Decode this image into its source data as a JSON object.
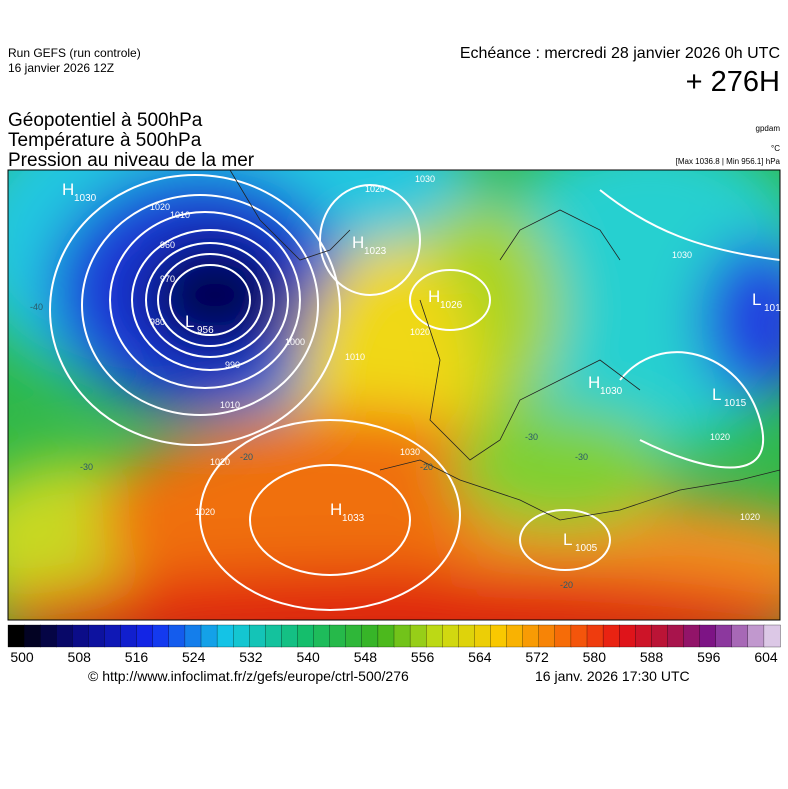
{
  "header": {
    "run": "Run GEFS (run controle)",
    "date": "16 janvier 2026 12Z",
    "echeance": "Echéance : mercredi 28 janvier 2026 0h UTC",
    "offset": "+ 276H"
  },
  "titles": [
    "Géopotentiel à 500hPa",
    "Température à 500hPa",
    "Pression au niveau de la mer"
  ],
  "units": {
    "geopotential": "gpdam",
    "temperature": "°C",
    "pressure": "[Max 1036.8 | Min 956.1] hPa"
  },
  "centers": [
    {
      "type": "H",
      "value": 1030
    },
    {
      "type": "L",
      "value": 956
    },
    {
      "type": "H",
      "value": 1023
    },
    {
      "type": "H",
      "value": 1026
    },
    {
      "type": "H",
      "value": 1033
    },
    {
      "type": "L",
      "value": 1005
    },
    {
      "type": "H",
      "value": 1030
    },
    {
      "type": "L",
      "value": 1015
    },
    {
      "type": "L",
      "value": 101
    }
  ],
  "isobar_labels": [
    1020,
    1010,
    1000,
    990,
    980,
    970,
    960,
    1010,
    1020,
    1030,
    1020,
    1020,
    1010,
    1030,
    1020,
    1030,
    1020,
    1020
  ],
  "temperature_labels": [
    -40,
    -30,
    -20,
    -30,
    -20,
    -30,
    -20
  ],
  "colorbar": {
    "ticks": [
      500,
      508,
      516,
      524,
      532,
      540,
      548,
      556,
      564,
      572,
      580,
      588,
      596,
      604
    ]
  },
  "footer": {
    "url": "© http://www.infoclimat.fr/z/gefs/europe/ctrl-500/276",
    "time": "16 janv. 2026 17:30 UTC"
  }
}
